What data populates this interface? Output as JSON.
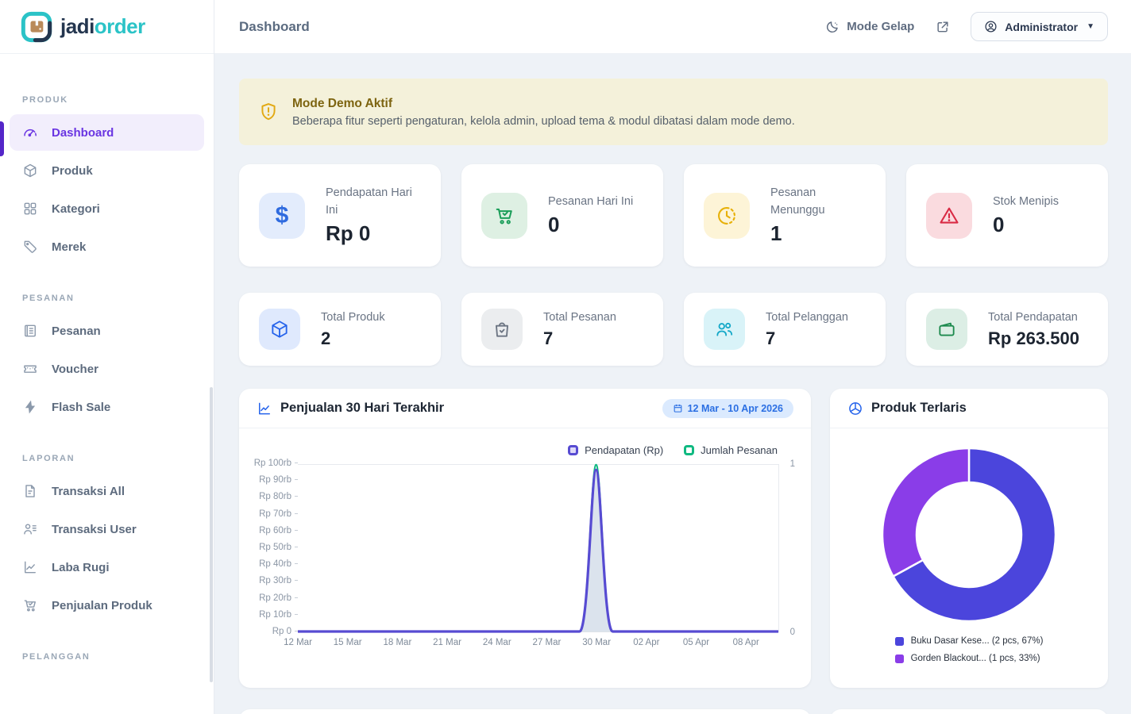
{
  "brand": {
    "name_part1": "jadi",
    "name_part2": "order"
  },
  "header": {
    "title": "Dashboard",
    "dark_mode_label": "Mode Gelap",
    "user_menu_label": "Administrator"
  },
  "sidebar": {
    "sections": [
      {
        "label": "PRODUK",
        "items": [
          {
            "label": "Dashboard",
            "icon": "gauge-icon",
            "active": true
          },
          {
            "label": "Produk",
            "icon": "box-icon"
          },
          {
            "label": "Kategori",
            "icon": "grid-icon"
          },
          {
            "label": "Merek",
            "icon": "tag-icon"
          }
        ]
      },
      {
        "label": "PESANAN",
        "items": [
          {
            "label": "Pesanan",
            "icon": "receipt-icon"
          },
          {
            "label": "Voucher",
            "icon": "ticket-icon"
          },
          {
            "label": "Flash Sale",
            "icon": "bolt-icon"
          }
        ]
      },
      {
        "label": "LAPORAN",
        "items": [
          {
            "label": "Transaksi All",
            "icon": "document-icon"
          },
          {
            "label": "Transaksi User",
            "icon": "user-list-icon"
          },
          {
            "label": "Laba Rugi",
            "icon": "line-chart-icon"
          },
          {
            "label": "Penjualan Produk",
            "icon": "cart-icon"
          }
        ]
      },
      {
        "label": "PELANGGAN",
        "items": []
      }
    ]
  },
  "banner": {
    "title": "Mode Demo Aktif",
    "description": "Beberapa fitur seperti pengaturan, kelola admin, upload tema & modul dibatasi dalam mode demo."
  },
  "stats_row1": [
    {
      "label": "Pendapatan Hari Ini",
      "value": "Rp 0",
      "icon": "dollar-icon",
      "color": "#2f6bdf",
      "bg": "#e3ecfc"
    },
    {
      "label": "Pesanan Hari Ini",
      "value": "0",
      "icon": "cart-check-icon",
      "color": "#199d58",
      "bg": "#def0e3"
    },
    {
      "label": "Pesanan Menunggu",
      "value": "1",
      "icon": "clock-icon",
      "color": "#e7b008",
      "bg": "#fdf4d7"
    },
    {
      "label": "Stok Menipis",
      "value": "0",
      "icon": "warning-triangle-icon",
      "color": "#d92b45",
      "bg": "#fadbdf"
    }
  ],
  "stats_row2": [
    {
      "label": "Total Produk",
      "value": "2",
      "icon": "cube-icon",
      "color": "#2563eb",
      "bg": "#dfe9fd"
    },
    {
      "label": "Total Pesanan",
      "value": "7",
      "icon": "bag-check-icon",
      "color": "#6b7482",
      "bg": "#ebedef"
    },
    {
      "label": "Total Pelanggan",
      "value": "7",
      "icon": "users-icon",
      "color": "#14a8c8",
      "bg": "#d9f3f8"
    },
    {
      "label": "Total Pendapatan",
      "value": "Rp 263.500",
      "icon": "wallet-icon",
      "color": "#1d8a4e",
      "bg": "#dceee5"
    }
  ],
  "sales_card": {
    "title": "Penjualan 30 Hari Terakhir",
    "date_badge": "12 Mar - 10 Apr 2026"
  },
  "donut_card": {
    "title": "Produk Terlaris"
  },
  "chart_data": [
    {
      "type": "line",
      "title": "Penjualan 30 Hari Terakhir",
      "date_range": "12 Mar - 10 Apr 2026",
      "x_days": 30,
      "x_ticks": [
        {
          "label": "12 Mar",
          "day": 0
        },
        {
          "label": "15 Mar",
          "day": 3
        },
        {
          "label": "18 Mar",
          "day": 6
        },
        {
          "label": "21 Mar",
          "day": 9
        },
        {
          "label": "24 Mar",
          "day": 12
        },
        {
          "label": "27 Mar",
          "day": 15
        },
        {
          "label": "30 Mar",
          "day": 18
        },
        {
          "label": "02 Apr",
          "day": 21
        },
        {
          "label": "05 Apr",
          "day": 24
        },
        {
          "label": "08 Apr",
          "day": 27
        }
      ],
      "y_ticks": [
        {
          "label": "Rp 0",
          "value": 0
        },
        {
          "label": "Rp 10rb",
          "value": 10000
        },
        {
          "label": "Rp 20rb",
          "value": 20000
        },
        {
          "label": "Rp 30rb",
          "value": 30000
        },
        {
          "label": "Rp 40rb",
          "value": 40000
        },
        {
          "label": "Rp 50rb",
          "value": 50000
        },
        {
          "label": "Rp 60rb",
          "value": 60000
        },
        {
          "label": "Rp 70rb",
          "value": 70000
        },
        {
          "label": "Rp 80rb",
          "value": 80000
        },
        {
          "label": "Rp 90rb",
          "value": 90000
        },
        {
          "label": "Rp 100rb",
          "value": 100000
        }
      ],
      "ylim": [
        0,
        100000
      ],
      "right_ylim": [
        0,
        1
      ],
      "right_axis_ticks": [
        "1",
        "0"
      ],
      "series": [
        {
          "name": "Pendapatan (Rp)",
          "color": "#574bd2",
          "marker_bg": "#ded9f8",
          "fill": "rgba(110,145,185,0.25)",
          "width": 3.2,
          "values": [
            0,
            0,
            0,
            0,
            0,
            0,
            0,
            0,
            0,
            0,
            0,
            0,
            0,
            0,
            0,
            0,
            0,
            0,
            97000,
            0,
            0,
            0,
            0,
            0,
            0,
            0,
            0,
            0,
            0,
            0
          ]
        },
        {
          "name": "Jumlah Pesanan",
          "color": "#10b981",
          "marker_bg": "#ffffff",
          "width": 2.4,
          "axis": "right",
          "values": [
            0,
            0,
            0,
            0,
            0,
            0,
            0,
            0,
            0,
            0,
            0,
            0,
            0,
            0,
            0,
            0,
            0,
            0,
            1,
            0,
            0,
            0,
            0,
            0,
            0,
            0,
            0,
            0,
            0,
            0
          ]
        }
      ]
    },
    {
      "type": "pie",
      "title": "Produk Terlaris",
      "labels": [
        "Buku Dasar Kese... (2 pcs, 67%)",
        "Gorden Blackout... (1 pcs, 33%)"
      ],
      "values": [
        67,
        33
      ],
      "pcs": [
        2,
        1
      ],
      "colors": [
        "#4b45dc",
        "#8a3de8"
      ],
      "legend_position": "bottom"
    }
  ]
}
